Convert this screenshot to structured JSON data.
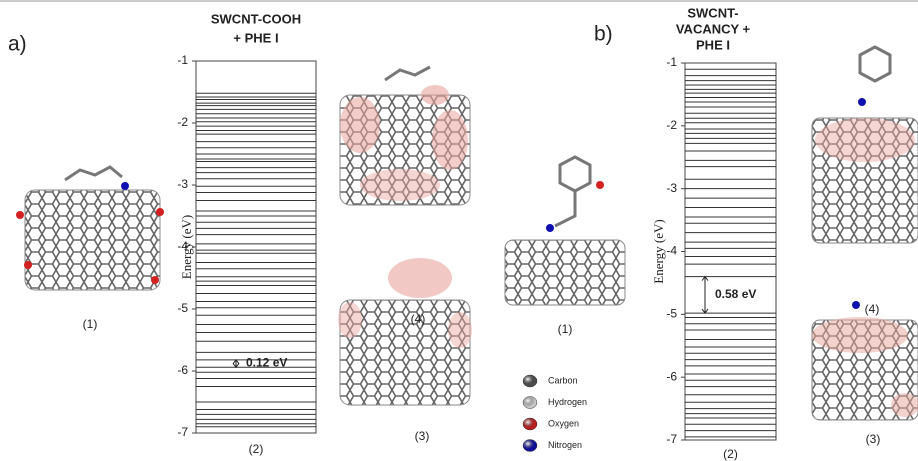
{
  "chart_data": [
    {
      "type": "levels",
      "title": [
        "SWCNT-COOH",
        "+ PHE I"
      ],
      "ylabel": "Energy (eV)",
      "xlabel": "(2)",
      "ylim": [
        -7,
        -1
      ],
      "yticks": [
        -1,
        -2,
        -3,
        -4,
        -5,
        -6,
        -7
      ],
      "color": "#333333",
      "levels": [
        -1.52,
        -1.58,
        -1.62,
        -1.68,
        -1.72,
        -1.78,
        -1.85,
        -1.92,
        -1.98,
        -2.05,
        -2.12,
        -2.18,
        -2.3,
        -2.4,
        -2.5,
        -2.58,
        -2.62,
        -2.72,
        -2.8,
        -2.9,
        -3.02,
        -3.12,
        -3.25,
        -3.42,
        -3.5,
        -3.6,
        -3.7,
        -3.8,
        -3.95,
        -4.05,
        -4.1,
        -4.25,
        -4.35,
        -4.48,
        -4.55,
        -4.62,
        -4.75,
        -4.88,
        -4.98,
        -5.1,
        -5.25,
        -5.38,
        -5.52,
        -5.7,
        -5.82,
        -5.94,
        -6.02,
        -6.12,
        -6.25,
        -6.5,
        -6.62,
        -6.7,
        -6.78,
        -6.85,
        -6.9
      ],
      "annotation": {
        "text": "0.12 eV",
        "range": [
          -5.82,
          -5.94
        ]
      }
    },
    {
      "type": "levels",
      "title": [
        "SWCNT-",
        "VACANCY +",
        "PHE I"
      ],
      "ylabel": "Energy (eV)",
      "xlabel": "(2)",
      "ylim": [
        -7,
        -1
      ],
      "yticks": [
        -1,
        -2,
        -3,
        -4,
        -5,
        -6,
        -7
      ],
      "color": "#333333",
      "levels": [
        -1.1,
        -1.2,
        -1.28,
        -1.35,
        -1.42,
        -1.48,
        -1.55,
        -1.62,
        -1.7,
        -1.8,
        -1.88,
        -1.95,
        -2.05,
        -2.12,
        -2.2,
        -2.28,
        -2.4,
        -2.55,
        -2.65,
        -2.85,
        -3.0,
        -3.15,
        -3.3,
        -3.45,
        -3.55,
        -3.7,
        -3.85,
        -3.95,
        -4.08,
        -4.2,
        -4.4,
        -4.98,
        -5.05,
        -5.15,
        -5.25,
        -5.4,
        -5.52,
        -5.62,
        -5.72,
        -5.82,
        -5.95,
        -6.05,
        -6.15,
        -6.28,
        -6.4,
        -6.5,
        -6.58,
        -6.65,
        -6.75,
        -6.85,
        -6.95
      ],
      "annotation": {
        "text": "0.58 eV",
        "range": [
          -4.4,
          -4.98
        ]
      }
    }
  ],
  "panels": [
    {
      "label": "a)",
      "structures": [
        "(1)",
        "(4)",
        "(3)"
      ]
    },
    {
      "label": "b)",
      "structures": [
        "(1)",
        "(4)",
        "(3)"
      ]
    }
  ],
  "atom_legend": [
    {
      "name": "Carbon",
      "color": "#555555"
    },
    {
      "name": "Hydrogen",
      "color": "#dddddd"
    },
    {
      "name": "Oxygen",
      "color": "#d42020"
    },
    {
      "name": "Nitrogen",
      "color": "#1010b0"
    }
  ]
}
